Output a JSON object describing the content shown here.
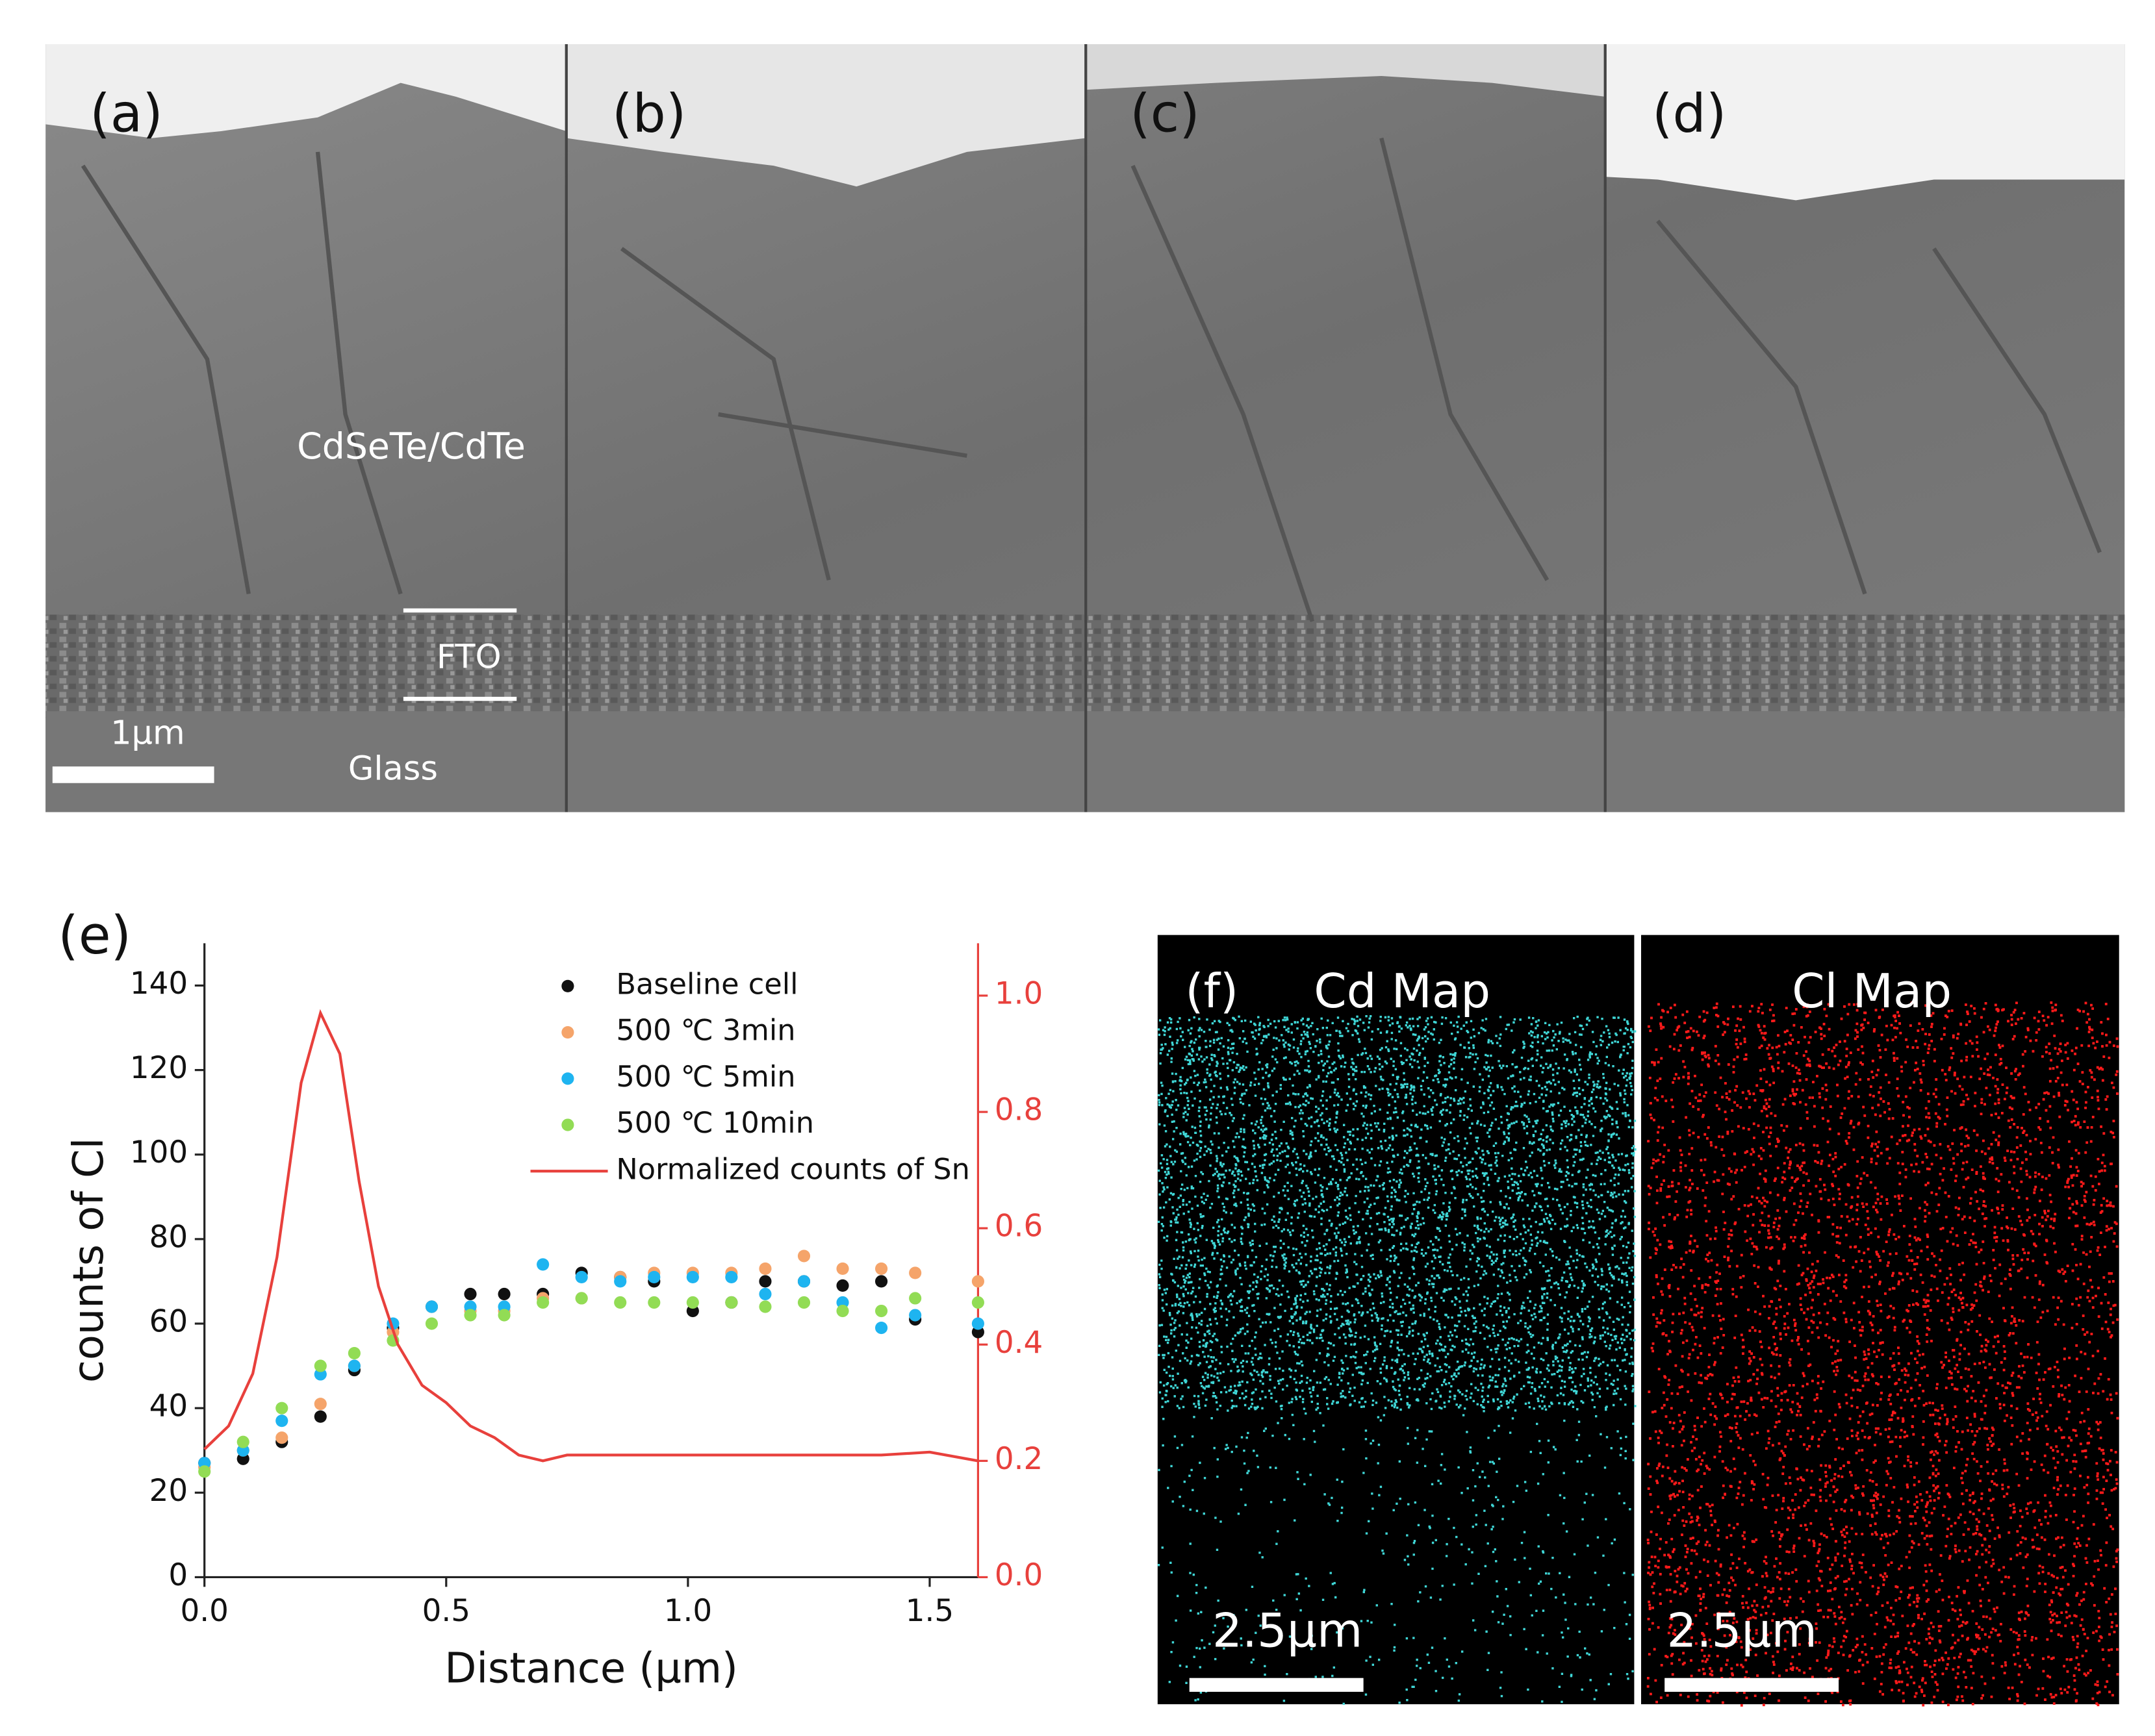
{
  "panels": {
    "sem": {
      "a": "(a)",
      "b": "(b)",
      "c": "(c)",
      "d": "(d)",
      "layer_absorber": "CdSeTe/CdTe",
      "layer_fto": "FTO",
      "scale_bar": "1μm",
      "layer_glass": "Glass"
    },
    "eds": {
      "label": "(f)",
      "cd_title": "Cd Map",
      "cl_title": "Cl Map",
      "cd_scale": "2.5μm",
      "cl_scale": "2.5μm"
    }
  },
  "chart_data": {
    "type": "scatter",
    "panel_label": "(e)",
    "x_label": "Distance (μm)",
    "y_label": "counts of Cl",
    "xlim": [
      0,
      1.6
    ],
    "ylim": [
      0,
      150
    ],
    "y2lim": [
      0,
      1.09
    ],
    "xticks": [
      {
        "value": 0,
        "label": "0.0"
      },
      0.5,
      {
        "value": 1,
        "label": "1.0"
      },
      1.5
    ],
    "yticks": [
      0,
      20,
      40,
      60,
      80,
      100,
      120,
      140
    ],
    "y2ticks": [
      {
        "value": 0,
        "label": "0.0"
      },
      0.2,
      0.4,
      0.6,
      0.8,
      {
        "value": 1,
        "label": "1.0"
      }
    ],
    "x": [
      0,
      0.08,
      0.16,
      0.24,
      0.31,
      0.39,
      0.47,
      0.55,
      0.62,
      0.7,
      0.78,
      0.86,
      0.93,
      1.01,
      1.09,
      1.16,
      1.24,
      1.32,
      1.4,
      1.47,
      1.6
    ],
    "series": [
      {
        "name": "Baseline cell",
        "color": "#111111",
        "values": [
          27,
          28,
          32,
          38,
          49,
          59,
          64,
          67,
          67,
          67,
          72,
          71,
          70,
          63,
          65,
          70,
          70,
          69,
          70,
          61,
          58
        ]
      },
      {
        "name": "500 ℃ 3min",
        "color": "#f5a46a",
        "values": [
          26,
          30,
          33,
          41,
          50,
          58,
          64,
          63,
          63,
          66,
          66,
          71,
          72,
          72,
          72,
          73,
          76,
          73,
          73,
          72,
          70
        ]
      },
      {
        "name": "500 ℃ 5min",
        "color": "#1eb4f0",
        "values": [
          27,
          30,
          37,
          48,
          50,
          60,
          64,
          64,
          64,
          74,
          71,
          70,
          71,
          71,
          71,
          67,
          70,
          65,
          59,
          62,
          60
        ]
      },
      {
        "name": "500 ℃ 10min",
        "color": "#92dc55",
        "values": [
          25,
          32,
          40,
          50,
          53,
          56,
          60,
          62,
          62,
          65,
          66,
          65,
          65,
          65,
          65,
          64,
          65,
          63,
          63,
          66,
          65
        ]
      },
      {
        "name": "Normalized counts of Sn",
        "type": "line",
        "axis": "y2",
        "color": "#e8403c",
        "x": [
          0,
          0.05,
          0.1,
          0.15,
          0.2,
          0.24,
          0.28,
          0.32,
          0.36,
          0.4,
          0.45,
          0.5,
          0.55,
          0.6,
          0.65,
          0.7,
          0.75,
          0.8,
          0.9,
          1.0,
          1.1,
          1.2,
          1.3,
          1.4,
          1.5,
          1.6
        ],
        "values": [
          0.22,
          0.26,
          0.35,
          0.55,
          0.85,
          0.97,
          0.9,
          0.68,
          0.5,
          0.4,
          0.33,
          0.3,
          0.26,
          0.24,
          0.21,
          0.2,
          0.21,
          0.21,
          0.21,
          0.21,
          0.21,
          0.21,
          0.21,
          0.21,
          0.215,
          0.2
        ]
      }
    ]
  }
}
